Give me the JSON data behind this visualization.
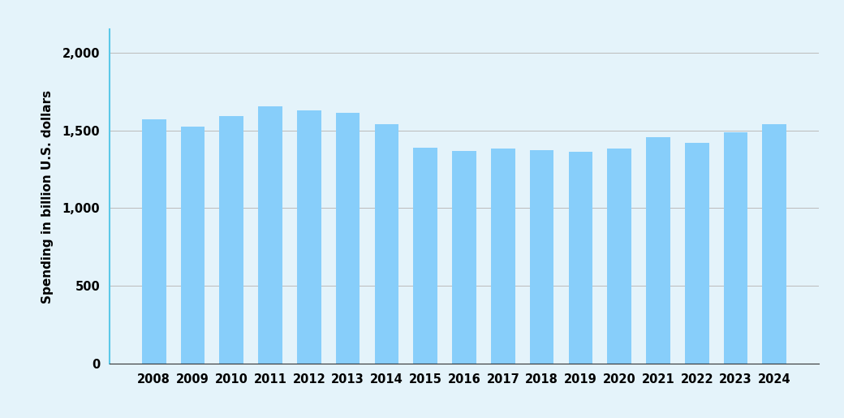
{
  "years": [
    "2008",
    "2009",
    "2010",
    "2011",
    "2012",
    "2013",
    "2014",
    "2015",
    "2016",
    "2017",
    "2018",
    "2019",
    "2020",
    "2021",
    "2022",
    "2023",
    "2024"
  ],
  "values": [
    1570,
    1525,
    1590,
    1655,
    1630,
    1615,
    1540,
    1390,
    1365,
    1385,
    1375,
    1360,
    1385,
    1455,
    1420,
    1490,
    1540
  ],
  "bar_color": "#87CEFA",
  "background_color": "#E4F3FA",
  "ylabel": "Spending in billion U.S. dollars",
  "ylim": [
    0,
    2150
  ],
  "yticks": [
    0,
    500,
    1000,
    1500,
    2000
  ],
  "ytick_labels": [
    "0",
    "500",
    "1,000",
    "1,500",
    "2,000"
  ],
  "grid_color": "#bbbbbb",
  "left_spine_color": "#5BC8E8",
  "bottom_spine_color": "#333333",
  "tick_label_fontsize": 10.5,
  "ylabel_fontsize": 11,
  "bar_width": 0.62
}
